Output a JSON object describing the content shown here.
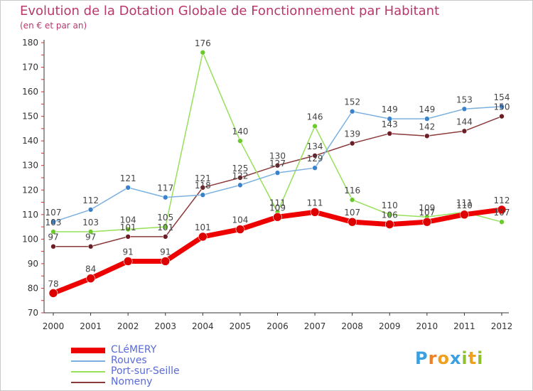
{
  "header": {
    "title": "Evolution de la Dotation Globale de Fonctionnement par Habitant",
    "subtitle": "(en € et par an)"
  },
  "chart_data": {
    "type": "line",
    "x": [
      "2000",
      "2001",
      "2002",
      "2003",
      "2004",
      "2005",
      "2006",
      "2007",
      "2008",
      "2009",
      "2010",
      "2011",
      "2012"
    ],
    "ylim": [
      70,
      180
    ],
    "yticks": [
      70,
      80,
      90,
      100,
      110,
      120,
      130,
      140,
      150,
      160,
      170,
      180
    ],
    "grid": false,
    "legend_position": "bottom-left",
    "series": [
      {
        "name": "CLéMERY",
        "color": "#ee0000",
        "point_color": "#dd0000",
        "width": 7,
        "radius": 6,
        "values": [
          78,
          84,
          91,
          91,
          101,
          104,
          109,
          111,
          107,
          106,
          107,
          110,
          112
        ]
      },
      {
        "name": "Rouves",
        "color": "#7ab0e0",
        "point_color": "#3b82cc",
        "width": 1.5,
        "radius": 3.5,
        "values": [
          107,
          112,
          121,
          117,
          118,
          122,
          127,
          129,
          152,
          149,
          149,
          153,
          154
        ]
      },
      {
        "name": "Port-sur-Seille",
        "color": "#96e05a",
        "point_color": "#6acc2a",
        "width": 1.5,
        "radius": 3.5,
        "values": [
          103,
          103,
          104,
          105,
          176,
          140,
          111,
          146,
          116,
          110,
          109,
          111,
          107
        ]
      },
      {
        "name": "Nomeny",
        "color": "#8a3a3a",
        "point_color": "#6b1e25",
        "width": 1.5,
        "radius": 3.5,
        "values": [
          97,
          97,
          101,
          101,
          121,
          125,
          130,
          134,
          139,
          143,
          142,
          144,
          150
        ]
      }
    ]
  },
  "branding": {
    "logo_letters": [
      "P",
      "r",
      "o",
      "x",
      "i",
      "t",
      "i"
    ],
    "logo_colors": [
      "#3aa0e0",
      "#f08020",
      "#f0a020",
      "#3aa0e0",
      "#90c030",
      "#f0a020",
      "#90c030"
    ]
  }
}
